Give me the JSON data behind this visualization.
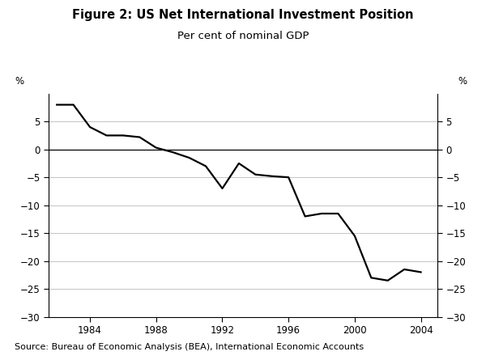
{
  "title": "Figure 2: US Net International Investment Position",
  "subtitle": "Per cent of nominal GDP",
  "source": "Source: Bureau of Economic Analysis (BEA), International Economic Accounts",
  "ylabel_left": "%",
  "ylabel_right": "%",
  "xlim": [
    1981.5,
    2005.0
  ],
  "ylim": [
    -30,
    10
  ],
  "yticks": [
    -30,
    -25,
    -20,
    -15,
    -10,
    -5,
    0,
    5
  ],
  "xticks": [
    1984,
    1988,
    1992,
    1996,
    2000,
    2004
  ],
  "years": [
    1982,
    1983,
    1984,
    1985,
    1986,
    1987,
    1988,
    1989,
    1990,
    1991,
    1992,
    1993,
    1994,
    1995,
    1996,
    1997,
    1998,
    1999,
    2000,
    2001,
    2002,
    2003,
    2004
  ],
  "values": [
    8.0,
    8.0,
    4.0,
    2.5,
    2.5,
    2.2,
    0.3,
    -0.5,
    -1.5,
    -3.0,
    -7.0,
    -2.5,
    -4.5,
    -4.8,
    -5.0,
    -12.0,
    -11.5,
    -11.5,
    -15.5,
    -23.0,
    -23.5,
    -21.5,
    -22.0
  ],
  "line_color": "#000000",
  "line_width": 1.6,
  "background_color": "#ffffff",
  "grid_color": "#bbbbbb",
  "zero_line_color": "#000000",
  "title_fontsize": 10.5,
  "subtitle_fontsize": 9.5,
  "source_fontsize": 8,
  "tick_fontsize": 8.5
}
